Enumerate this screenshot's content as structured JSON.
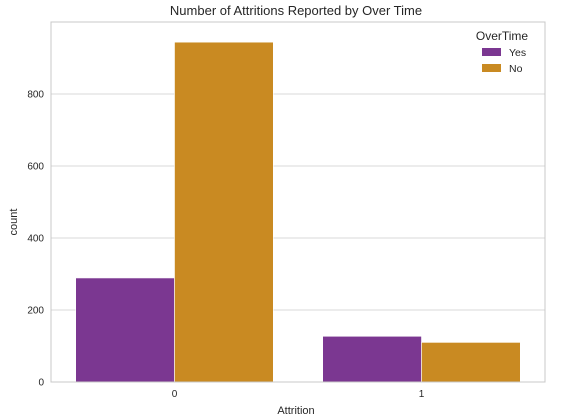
{
  "chart_data": {
    "type": "bar",
    "title": "Number of Attritions Reported by Over Time",
    "xlabel": "Attrition",
    "ylabel": "count",
    "categories": [
      "0",
      "1"
    ],
    "series": [
      {
        "name": "Yes",
        "values": [
          289,
          127
        ],
        "color": "#7b3791"
      },
      {
        "name": "No",
        "values": [
          944,
          110
        ],
        "color": "#c98a22"
      }
    ],
    "ylim": [
      0,
      1000
    ],
    "yticks": [
      "0",
      "200",
      "400",
      "600",
      "800"
    ],
    "grid": true,
    "legend": {
      "title": "OverTime",
      "position": "top-right"
    }
  }
}
